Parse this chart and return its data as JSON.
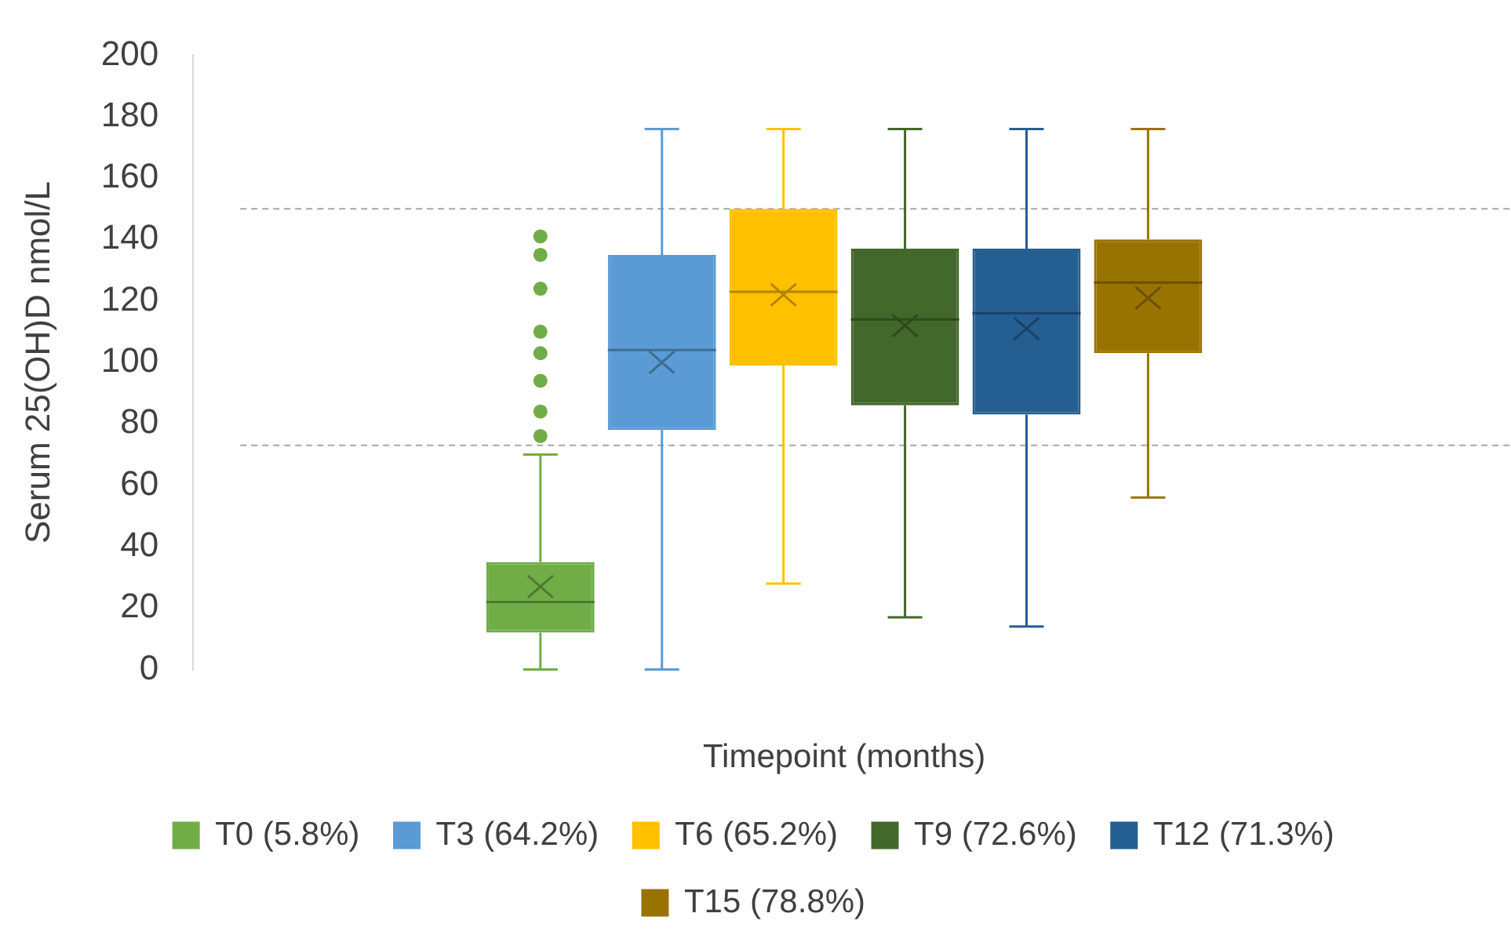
{
  "chart_data": {
    "type": "box",
    "categories": [
      null
    ],
    "xlabel": "Timepoint (months)",
    "ylabel": "Serum 25(OH)D nmol/L",
    "ylim": [
      0,
      200
    ],
    "yticks": [
      0,
      20,
      40,
      60,
      80,
      100,
      120,
      140,
      160,
      180,
      200
    ],
    "grid": false,
    "legend": "bottom",
    "ref_lines": [
      {
        "axis": "y",
        "value": 150,
        "color": "#a6a6a6",
        "line_style": "dashed"
      },
      {
        "axis": "y",
        "value": 73,
        "color": "#a6a6a6",
        "line_style": "dashed"
      }
    ],
    "series": [
      {
        "name": "T0 (5.8%)",
        "color": "#70ad47",
        "boxes": [
          {
            "low": 0,
            "q1": 12,
            "median": 22,
            "q3": 35,
            "high": 70,
            "mean": 27,
            "outliers": [
              76,
              84,
              94,
              103,
              110,
              124,
              135,
              141
            ]
          }
        ]
      },
      {
        "name": "T3 (64.2%)",
        "color": "#5b9bd5",
        "boxes": [
          {
            "low": 0,
            "q1": 78,
            "median": 104,
            "q3": 135,
            "high": 176,
            "mean": 100
          }
        ]
      },
      {
        "name": "T6 (65.2%)",
        "color": "#ffc000",
        "boxes": [
          {
            "low": 28,
            "q1": 99,
            "median": 123,
            "q3": 150,
            "high": 176,
            "mean": 122
          }
        ]
      },
      {
        "name": "T9 (72.6%)",
        "color": "#43682b",
        "boxes": [
          {
            "low": 17,
            "q1": 86,
            "median": 114,
            "q3": 137,
            "high": 176,
            "mean": 112
          }
        ]
      },
      {
        "name": "T12 (71.3%)",
        "color": "#255e91",
        "boxes": [
          {
            "low": 14,
            "q1": 83,
            "median": 116,
            "q3": 137,
            "high": 176,
            "mean": 111
          }
        ]
      },
      {
        "name": "T15 (78.8%)",
        "color": "#997300",
        "boxes": [
          {
            "low": 56,
            "q1": 103,
            "median": 126,
            "q3": 140,
            "high": 176,
            "mean": 121
          }
        ]
      }
    ]
  }
}
